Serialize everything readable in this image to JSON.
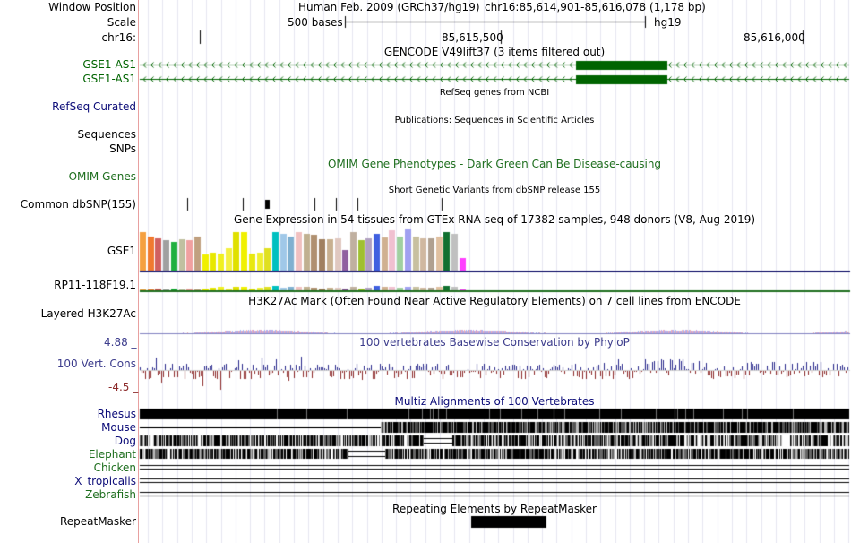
{
  "colors": {
    "gencode": "#006400",
    "refseq": "#0c0c78",
    "phylop_title": "#3c3c8c",
    "phylop_pos": "#2a2a8c",
    "phylop_neg": "#8c2a2a",
    "omim": "#1e6e1e",
    "multiz": "#0c0c78",
    "gtex_line": "#1a1a6e",
    "rp11_line": "#1e6e1e",
    "grid": "#e6e6f0"
  },
  "header": {
    "window_position_label": "Window Position",
    "scale_label": "Scale",
    "chrom_label": "chr16:",
    "assembly": "Human Feb. 2009 (GRCh37/hg19)",
    "position": "chr16:85,614,901-85,616,078 (1,178 bp)",
    "scale_text": "500 bases",
    "scale_db": "hg19",
    "ticks": [
      "85,615,500",
      "85,616,000"
    ]
  },
  "tracks": {
    "gencode_title": "GENCODE V49lift37 (3 items filtered out)",
    "gencode_items": [
      "GSE1-AS1",
      "GSE1-AS1"
    ],
    "refseq_title": "RefSeq genes from NCBI",
    "refseq_label": "RefSeq Curated",
    "pubs_title": "Publications: Sequences in Scientific Articles",
    "sequences_label": "Sequences",
    "snps_label": "SNPs",
    "omim_label": "OMIM Genes",
    "omim_title": "OMIM Gene Phenotypes - Dark Green Can Be Disease-causing",
    "dbsnp_title": "Short Genetic Variants from dbSNP release 155",
    "dbsnp_label": "Common dbSNP(155)",
    "gtex_title": "Gene Expression in 54 tissues from GTEx RNA-seq of 17382 samples, 948 donors (V8, Aug 2019)",
    "gtex_genes": [
      "GSE1",
      "RP11-118F19.1"
    ],
    "h3k27_title": "H3K27Ac Mark (Often Found Near Active Regulatory Elements) on 7 cell lines from ENCODE",
    "h3k27_label": "Layered H3K27Ac",
    "phylop_title": "100 vertebrates Basewise Conservation by PhyloP",
    "phylop_label": "100 Vert. Cons",
    "phylop_max": "4.88 _",
    "phylop_min": "-4.5 _",
    "multiz_title": "Multiz Alignments of 100 Vertebrates",
    "species": [
      "Rhesus",
      "Mouse",
      "Dog",
      "Elephant",
      "Chicken",
      "X_tropicalis",
      "Zebrafish"
    ],
    "rmsk_title": "Repeating Elements by RepeatMasker",
    "rmsk_label": "RepeatMasker"
  },
  "gtex_bars": {
    "colors": [
      "#f5a040",
      "#f07a30",
      "#d06060",
      "#a0a0a0",
      "#20b040",
      "#c0c0a0",
      "#f0a0a0",
      "#c0a080",
      "#f0f000",
      "#e8e800",
      "#f0f020",
      "#f4f040",
      "#e0e000",
      "#f0f000",
      "#e8e810",
      "#f0f030",
      "#e0e020",
      "#00c0c0",
      "#a0c8e8",
      "#80b0d0",
      "#f0c0c0",
      "#c0b090",
      "#b09070",
      "#a08060",
      "#c8b090",
      "#e0c8c0",
      "#9060a0",
      "#c0b0a0",
      "#a0c030",
      "#b0a0c0",
      "#4060e0",
      "#d0b090",
      "#f0c0d0",
      "#a0d0a0",
      "#a0a0f0",
      "#c8c0a0",
      "#d0b8a0",
      "#b0a090",
      "#e0c0a0",
      "#107030",
      "#c0c0c0",
      "#ff40ff"
    ],
    "gse1_values": [
      0.95,
      0.85,
      0.8,
      0.75,
      0.72,
      0.78,
      0.75,
      0.85,
      0.4,
      0.45,
      0.42,
      0.55,
      0.95,
      0.95,
      0.42,
      0.45,
      0.55,
      0.95,
      0.9,
      0.85,
      0.95,
      0.92,
      0.88,
      0.78,
      0.78,
      0.8,
      0.52,
      0.95,
      0.75,
      0.8,
      0.92,
      0.82,
      1.0,
      0.85,
      1.02,
      0.85,
      0.8,
      0.8,
      0.85,
      0.95,
      0.92,
      0.3
    ],
    "rp11_values": [
      0.1,
      0.1,
      0.15,
      0.1,
      0.15,
      0.1,
      0.15,
      0.1,
      0.15,
      0.2,
      0.25,
      0.15,
      0.3,
      0.3,
      0.15,
      0.2,
      0.3,
      0.35,
      0.2,
      0.25,
      0.25,
      0.25,
      0.2,
      0.15,
      0.2,
      0.2,
      0.15,
      0.25,
      0.15,
      0.2,
      0.35,
      0.25,
      0.3,
      0.2,
      0.3,
      0.25,
      0.2,
      0.2,
      0.25,
      0.35,
      0.3,
      0.1
    ]
  }
}
